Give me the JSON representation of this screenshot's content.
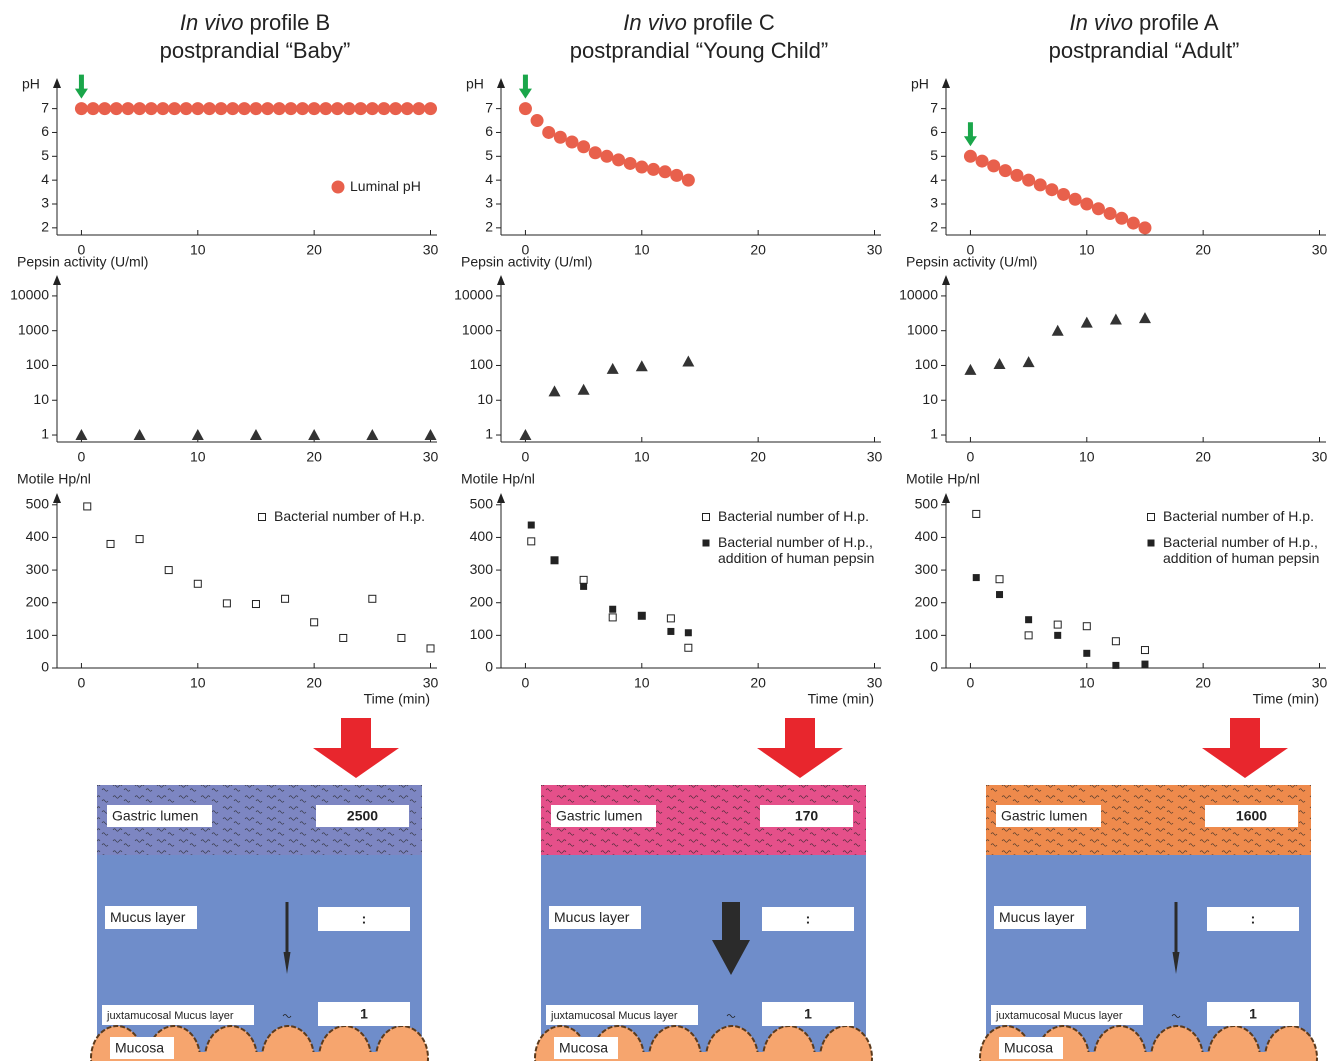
{
  "chart_data": [
    {
      "type": "scatter",
      "y_label": "pH",
      "x": [
        0,
        1,
        2,
        3,
        4,
        5,
        6,
        7,
        8,
        9,
        10,
        11,
        12,
        13,
        14,
        15,
        16,
        17,
        18,
        19,
        20,
        21,
        22,
        23,
        24,
        25,
        26,
        27,
        28,
        29,
        30
      ],
      "series": [
        {
          "name": "Luminal pH",
          "color": "#e8604c",
          "marker": "circle",
          "values": [
            7,
            7,
            7,
            7,
            7,
            7,
            7,
            7,
            7,
            7,
            7,
            7,
            7,
            7,
            7,
            7,
            7,
            7,
            7,
            7,
            7,
            7,
            7,
            7,
            7,
            7,
            7,
            7,
            7,
            7,
            7
          ]
        }
      ],
      "xlim": [
        -2.1,
        30.3
      ],
      "xticks": [
        0,
        10,
        20,
        30
      ],
      "ylim": [
        1.7,
        8.2
      ],
      "yticks": [
        2,
        3,
        4,
        5,
        6,
        7
      ]
    },
    {
      "type": "scatter",
      "y_label": "Pepsin activity (U/ml)",
      "x": [
        0,
        5,
        10,
        15,
        20,
        25,
        30
      ],
      "series": [
        {
          "color": "#333333",
          "marker": "triangle",
          "values": [
            1,
            1,
            1,
            1,
            1,
            1,
            1
          ]
        }
      ],
      "xlim": [
        -2.1,
        30.3
      ],
      "xticks": [
        0,
        10,
        20,
        30
      ],
      "ylog": true,
      "ylim": [
        0.63,
        35000
      ],
      "yticks": [
        1,
        10,
        100,
        1000,
        10000
      ]
    },
    {
      "type": "scatter",
      "y_label": "Motile Hp/nl",
      "x_label": "Time (min)",
      "x": [
        0.5,
        2.5,
        5,
        7.5,
        10,
        12.5,
        15,
        17.5,
        20,
        22.5,
        25,
        27.5,
        30
      ],
      "series": [
        {
          "name": "Bacterial number of H.p.",
          "color": "#222222",
          "marker": "square-open",
          "values": [
            495,
            380,
            395,
            300,
            258,
            198,
            196,
            212,
            140,
            92,
            212,
            92,
            60
          ]
        }
      ],
      "xlim": [
        -2.1,
        30.3
      ],
      "xticks": [
        0,
        10,
        20,
        30
      ],
      "ylim": [
        0,
        530
      ],
      "yticks": [
        0,
        100,
        200,
        300,
        400,
        500
      ]
    },
    {
      "type": "scatter",
      "y_label": "pH",
      "x": [
        0,
        1,
        2,
        3,
        4,
        5,
        6,
        7,
        8,
        9,
        10,
        11,
        12,
        13,
        14
      ],
      "series": [
        {
          "color": "#e8604c",
          "marker": "circle",
          "values": [
            7,
            6.5,
            6.0,
            5.8,
            5.6,
            5.4,
            5.15,
            5.0,
            4.85,
            4.7,
            4.55,
            4.45,
            4.35,
            4.2,
            4.0
          ]
        }
      ],
      "xlim": [
        -2.1,
        30.3
      ],
      "xticks": [
        0,
        10,
        20,
        30
      ],
      "ylim": [
        1.7,
        8.2
      ],
      "yticks": [
        2,
        3,
        4,
        5,
        6,
        7
      ]
    },
    {
      "type": "scatter",
      "y_label": "Pepsin activity (U/ml)",
      "x": [
        0,
        2.5,
        5,
        7.5,
        10,
        14
      ],
      "series": [
        {
          "color": "#333333",
          "marker": "triangle",
          "values": [
            1,
            18,
            20,
            80,
            95,
            130
          ]
        }
      ],
      "xlim": [
        -2.1,
        30.3
      ],
      "xticks": [
        0,
        10,
        20,
        30
      ],
      "ylog": true,
      "ylim": [
        0.63,
        35000
      ],
      "yticks": [
        1,
        10,
        100,
        1000,
        10000
      ]
    },
    {
      "type": "scatter",
      "y_label": "Motile Hp/nl",
      "x_label": "Time (min)",
      "x": [
        0.5,
        2.5,
        5,
        7.5,
        10,
        12.5,
        14
      ],
      "series": [
        {
          "name": "Bacterial number of H.p.",
          "color": "#222222",
          "marker": "square-open",
          "values": [
            388,
            330,
            270,
            155,
            160,
            152,
            62
          ]
        },
        {
          "name": "Bacterial number of H.p., addition of human pepsin",
          "color": "#222222",
          "marker": "square",
          "values": [
            438,
            330,
            250,
            180,
            160,
            112,
            108
          ]
        }
      ],
      "xlim": [
        -2.1,
        30.3
      ],
      "xticks": [
        0,
        10,
        20,
        30
      ],
      "ylim": [
        0,
        530
      ],
      "yticks": [
        0,
        100,
        200,
        300,
        400,
        500
      ]
    },
    {
      "type": "scatter",
      "y_label": "pH",
      "x": [
        0,
        1,
        2,
        3,
        4,
        5,
        6,
        7,
        8,
        9,
        10,
        11,
        12,
        13,
        14,
        15
      ],
      "series": [
        {
          "color": "#e8604c",
          "marker": "circle",
          "values": [
            5,
            4.8,
            4.6,
            4.4,
            4.2,
            4.0,
            3.8,
            3.6,
            3.4,
            3.2,
            3.0,
            2.8,
            2.6,
            2.4,
            2.2,
            2.0
          ]
        }
      ],
      "xlim": [
        -2.1,
        30.3
      ],
      "xticks": [
        0,
        10,
        20,
        30
      ],
      "ylim": [
        1.7,
        8.2
      ],
      "yticks": [
        2,
        3,
        4,
        5,
        6,
        7
      ]
    },
    {
      "type": "scatter",
      "y_label": "Pepsin activity (U/ml)",
      "x": [
        0,
        2.5,
        5,
        7.5,
        10,
        12.5,
        15
      ],
      "series": [
        {
          "color": "#333333",
          "marker": "triangle",
          "values": [
            75,
            110,
            125,
            1000,
            1700,
            2100,
            2300
          ]
        }
      ],
      "xlim": [
        -2.1,
        30.3
      ],
      "xticks": [
        0,
        10,
        20,
        30
      ],
      "ylog": true,
      "ylim": [
        0.63,
        35000
      ],
      "yticks": [
        1,
        10,
        100,
        1000,
        10000
      ]
    },
    {
      "type": "scatter",
      "y_label": "Motile Hp/nl",
      "x_label": "Time (min)",
      "x": [
        0.5,
        2.5,
        5,
        7.5,
        10,
        12.5,
        15
      ],
      "series": [
        {
          "name": "Bacterial number of H.p.",
          "color": "#222222",
          "marker": "square-open",
          "values": [
            472,
            272,
            100,
            133,
            128,
            82,
            55
          ]
        },
        {
          "name": "Bacterial number of H.p., addition of human pepsin",
          "color": "#222222",
          "marker": "square",
          "values": [
            277,
            225,
            148,
            100,
            45,
            8,
            12
          ]
        }
      ],
      "xlim": [
        -2.1,
        30.3
      ],
      "xticks": [
        0,
        10,
        20,
        30
      ],
      "ylim": [
        0,
        530
      ],
      "yticks": [
        0,
        100,
        200,
        300,
        400,
        500
      ]
    }
  ],
  "profiles": [
    {
      "title_em": "In vivo",
      "title": "profile B",
      "subtitle": "postprandial “Baby”",
      "diagram": {
        "lumen_label": "Gastric lumen",
        "lumen_value": 2500,
        "mucus_label": "Mucus layer",
        "mucus_value": ":",
        "juxta_label": "juxtamucosal Mucus layer",
        "juxta_value": 1,
        "mucosa_label": "Mucosa",
        "lumen_color": "#7d86c2"
      }
    },
    {
      "title_em": "In vivo",
      "title": "profile C",
      "subtitle": "postprandial “Young Child”",
      "diagram": {
        "lumen_label": "Gastric lumen",
        "lumen_value": 170,
        "mucus_label": "Mucus layer",
        "mucus_value": ":",
        "juxta_label": "juxtamucosal Mucus layer",
        "juxta_value": 1,
        "mucosa_label": "Mucosa",
        "lumen_color": "#e5508a"
      }
    },
    {
      "title_em": "In vivo",
      "title": "profile A",
      "subtitle": "postprandial “Adult”",
      "diagram": {
        "lumen_label": "Gastric lumen",
        "lumen_value": 1600,
        "mucus_label": "Mucus layer",
        "mucus_value": ":",
        "juxta_label": "juxtamucosal Mucus layer",
        "juxta_value": 1,
        "mucosa_label": "Mucosa",
        "lumen_color": "#ee8a4c"
      }
    }
  ]
}
